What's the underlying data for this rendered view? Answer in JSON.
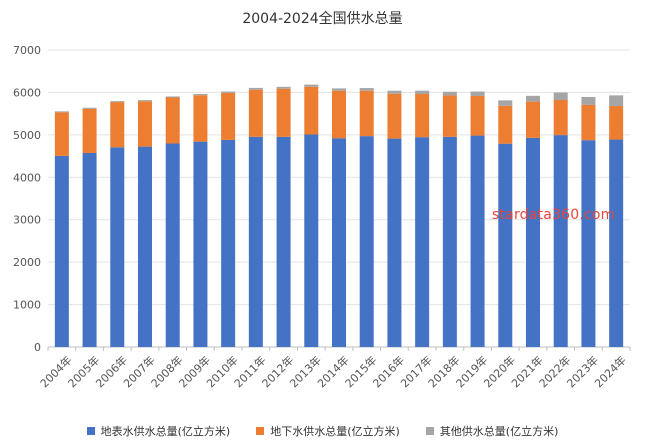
{
  "chart_data": {
    "type": "bar",
    "stacked": true,
    "title": "2004-2024全国供水总量",
    "categories": [
      "2004年",
      "2005年",
      "2006年",
      "2007年",
      "2008年",
      "2009年",
      "2010年",
      "2011年",
      "2012年",
      "2013年",
      "2014年",
      "2015年",
      "2016年",
      "2017年",
      "2018年",
      "2019年",
      "2020年",
      "2021年",
      "2022年",
      "2023年",
      "2024年"
    ],
    "series": [
      {
        "name": "地表水供水总量(亿立方米)",
        "color": "#4472c4",
        "values": [
          4504,
          4573,
          4707,
          4723,
          4796,
          4840,
          4881,
          4953,
          4953,
          5008,
          4921,
          4970,
          4912,
          4945,
          4953,
          4983,
          4792,
          4929,
          4994,
          4875,
          4889
        ]
      },
      {
        "name": "地下水供水总量(亿立方米)",
        "color": "#ed7d31",
        "values": [
          1026,
          1039,
          1065,
          1069,
          1085,
          1094,
          1107,
          1110,
          1134,
          1126,
          1117,
          1069,
          1057,
          1017,
          976,
          934,
          893,
          854,
          828,
          832,
          790
        ]
      },
      {
        "name": "其他供水总量(亿立方米)",
        "color": "#a5a5a5",
        "values": [
          24,
          27,
          23,
          27,
          24,
          29,
          33,
          44,
          44,
          50,
          57,
          64,
          71,
          79,
          87,
          104,
          128,
          137,
          176,
          186,
          252
        ]
      }
    ],
    "yticks": [
      "0",
      "1000",
      "2000",
      "3000",
      "4000",
      "5000",
      "6000",
      "7000"
    ],
    "ylim": [
      0,
      7000
    ],
    "grid": true,
    "legend_position": "bottom",
    "watermark": "stardata360.com"
  }
}
